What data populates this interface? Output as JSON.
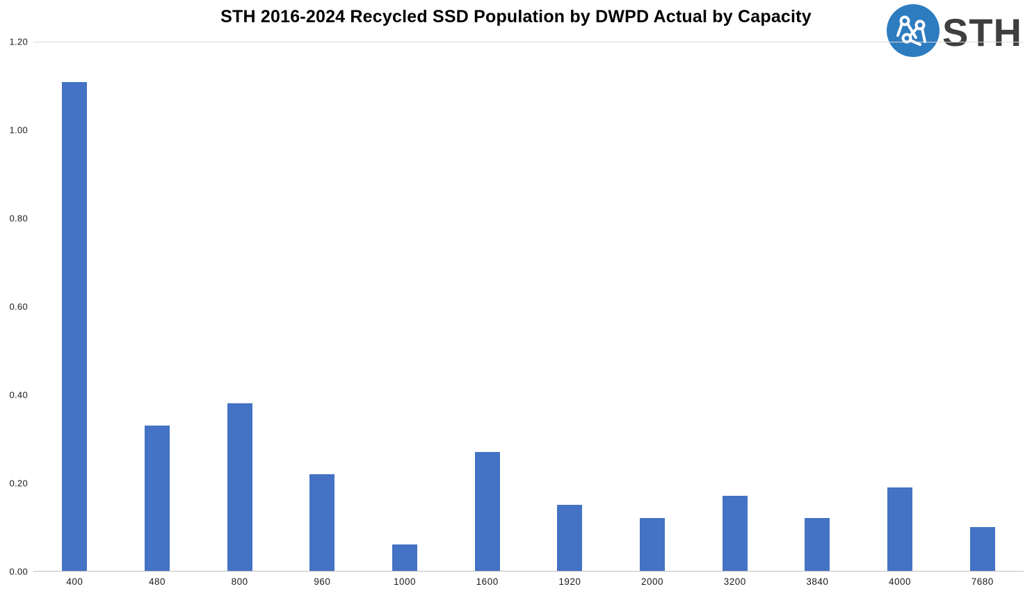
{
  "title": "STH 2016-2024 Recycled SSD Population by DWPD Actual by Capacity",
  "logo": {
    "text": "STH",
    "circle_color": "#2e7cc0"
  },
  "chart_data": {
    "type": "bar",
    "title": "STH 2016-2024 Recycled SSD Population by DWPD Actual by Capacity",
    "xlabel": "",
    "ylabel": "",
    "categories": [
      "400",
      "480",
      "800",
      "960",
      "1000",
      "1600",
      "1920",
      "2000",
      "3200",
      "3840",
      "4000",
      "7680"
    ],
    "values": [
      1.11,
      0.33,
      0.38,
      0.22,
      0.06,
      0.27,
      0.15,
      0.12,
      0.17,
      0.12,
      0.19,
      0.1
    ],
    "ylim": [
      0,
      1.2
    ],
    "yticks": [
      {
        "label": "0.00",
        "value": 0.0
      },
      {
        "label": "0.20",
        "value": 0.2
      },
      {
        "label": "0.40",
        "value": 0.4
      },
      {
        "label": "0.60",
        "value": 0.6
      },
      {
        "label": "0.80",
        "value": 0.8
      },
      {
        "label": "1.00",
        "value": 1.0
      },
      {
        "label": "1.20",
        "value": 1.2
      }
    ],
    "bar_color": "#4472c4",
    "grid": false,
    "legend": "none"
  }
}
